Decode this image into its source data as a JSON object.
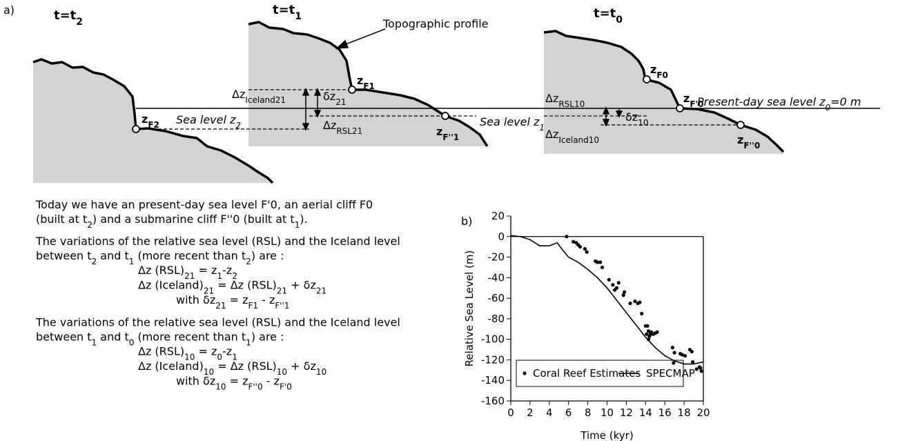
{
  "diagram": {
    "panel_label": "a)",
    "times": [
      [
        "t=t",
        "2"
      ],
      [
        "t=t",
        "1"
      ],
      [
        "t=t",
        "0"
      ]
    ],
    "annotation": "Topographic profile",
    "points": [
      [
        "z",
        "F2"
      ],
      [
        "z",
        "F1"
      ],
      [
        "z",
        "F''1"
      ],
      [
        "z",
        "F0"
      ],
      [
        "z",
        "F'0"
      ],
      [
        "z",
        "F''0"
      ]
    ],
    "deltas": [
      [
        "Δz",
        "Iceland21"
      ],
      [
        "δz",
        "21"
      ],
      [
        "Δz",
        "RSL21"
      ],
      [
        "Δz",
        "RSL10"
      ],
      [
        "δz",
        "10"
      ],
      [
        "Δz",
        "Iceland10"
      ]
    ],
    "sea_levels": [
      [
        "Sea level z",
        "2"
      ],
      [
        "Sea level z",
        "1"
      ],
      [
        "Present-day sea level z",
        "0",
        "=0 m"
      ]
    ]
  },
  "text": {
    "paragraphs": [
      {
        "lines": [
          [
            "Today we have an present-day sea level F'0, an aerial cliff F0"
          ],
          [
            "(built at t",
            "2",
            ") and a submarine cliff F''0 (built at t",
            "1",
            ")."
          ]
        ],
        "equations": []
      },
      {
        "lines": [
          [
            "The variations of the relative sea level (RSL) and the Iceland level"
          ],
          [
            "between t",
            "2",
            " and t",
            "1",
            " (more recent than t",
            "2",
            ") are :"
          ]
        ],
        "equations": [
          [
            "Δz (RSL)",
            "21",
            " = z",
            "1",
            "-z",
            "2"
          ],
          [
            "Δz (Iceland)",
            "21",
            " = Δz (RSL)",
            "21",
            " + δz",
            "21"
          ],
          [
            "with  δz",
            "21",
            " = z",
            "F1",
            " - z",
            "F''1"
          ]
        ]
      },
      {
        "lines": [
          [
            "The variations of the relative sea level (RSL) and the Iceland level"
          ],
          [
            "between t",
            "1",
            " and t",
            "0",
            " (more recent than t",
            "1",
            ") are :"
          ]
        ],
        "equations": [
          [
            "Δz (RSL)",
            "10",
            " = z",
            "0",
            "-z",
            "1"
          ],
          [
            "Δz (Iceland)",
            "10",
            " = Δz (RSL)",
            "10",
            " + δz",
            "10"
          ],
          [
            "with δz",
            "10",
            " = z",
            "F''0",
            " - z",
            "F'0"
          ]
        ]
      }
    ]
  },
  "chart_data": {
    "type": "scatter",
    "panel_label": "b)",
    "x_label": "Time (kyr)",
    "y_label": "Relative Sea Level (m)",
    "xlim": [
      0,
      20
    ],
    "ylim": [
      -160,
      20
    ],
    "xticks": [
      0,
      2,
      4,
      6,
      8,
      10,
      12,
      14,
      16,
      18,
      20
    ],
    "yticks": [
      -160,
      -140,
      -120,
      -100,
      -80,
      -60,
      -40,
      -20,
      0,
      20
    ],
    "legend": "lower left",
    "series": [
      {
        "name": "Coral Reef Estimates",
        "type": "scatter",
        "color": "#000000",
        "x": [
          5.8,
          6.5,
          6.8,
          7.0,
          7.2,
          7.7,
          7.9,
          8.8,
          9.0,
          9.3,
          9.5,
          10.2,
          10.6,
          10.8,
          11.0,
          11.2,
          11.7,
          11.8,
          12.4,
          12.9,
          13.2,
          13.4,
          13.6,
          14.0,
          14.1,
          14.2,
          14.3,
          14.3,
          14.4,
          14.5,
          14.6,
          14.8,
          15.0,
          15.2,
          16.8,
          16.9,
          17.0,
          17.6,
          17.8,
          18.1,
          18.6,
          18.8,
          18.9,
          19.3,
          19.6,
          19.7,
          19.8
        ],
        "values": [
          0,
          -5,
          -6,
          -8,
          -10,
          -12,
          -15,
          -24,
          -25,
          -25,
          -30,
          -42,
          -47,
          -52,
          -50,
          -45,
          -57,
          -54,
          -65,
          -63,
          -65,
          -64,
          -75,
          -87,
          -95,
          -87,
          -92,
          -100,
          -97,
          -95,
          -93,
          -95,
          -94,
          -93,
          -108,
          -123,
          -113,
          -114,
          -115,
          -116,
          -110,
          -112,
          -122,
          -129,
          -127,
          -128,
          -131
        ]
      },
      {
        "name": "SPECMAP",
        "type": "line",
        "color": "#000000",
        "x": [
          0,
          1,
          2,
          3,
          4,
          4.8,
          5.3,
          6,
          7,
          8,
          9,
          10,
          11,
          12,
          13,
          14,
          15,
          16,
          17,
          18,
          19,
          20
        ],
        "values": [
          1,
          0,
          -3,
          -9,
          -9,
          -6,
          -12,
          -20,
          -25,
          -32,
          -40,
          -50,
          -62,
          -74,
          -86,
          -98,
          -108,
          -116,
          -121,
          -124,
          -124,
          -122
        ]
      }
    ]
  }
}
